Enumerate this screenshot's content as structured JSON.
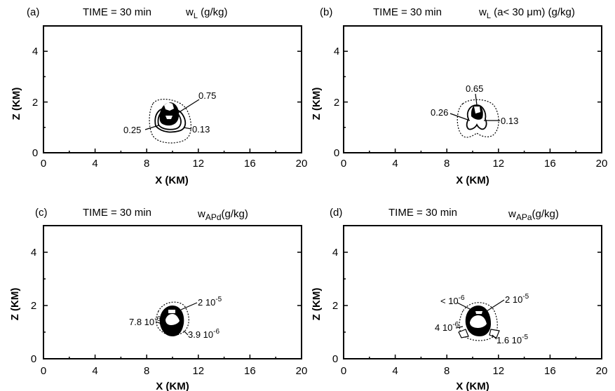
{
  "figure": {
    "panels": [
      {
        "id": "a",
        "tag": "(a)",
        "time_label": "TIME = 30 min",
        "variable_label": "w",
        "variable_sub": "L",
        "variable_suffix": " (g/kg)",
        "xlabel": "X  (KM)",
        "ylabel": "Z  (KM)",
        "xticks": [
          "0",
          "4",
          "8",
          "12",
          "16",
          "20"
        ],
        "yticks": [
          "0",
          "2",
          "4"
        ],
        "annotations": [
          "0.75",
          "0.25",
          "0.13"
        ]
      },
      {
        "id": "b",
        "tag": "(b)",
        "time_label": "TIME = 30 min",
        "variable_label": "w",
        "variable_sub": "L",
        "variable_suffix": "  (a< 30 μm) (g/kg)",
        "xlabel": "X  (KM)",
        "ylabel": "Z  (KM)",
        "xticks": [
          "0",
          "4",
          "8",
          "12",
          "16",
          "20"
        ],
        "yticks": [
          "0",
          "2",
          "4"
        ],
        "annotations": [
          "0.65",
          "0.26",
          "0.13"
        ]
      },
      {
        "id": "c",
        "tag": "(c)",
        "time_label": "TIME = 30 min",
        "variable_label": "w",
        "variable_sub": "APd",
        "variable_suffix": "(g/kg)",
        "xlabel": "X  (KM)",
        "ylabel": "Z  (KM)",
        "xticks": [
          "0",
          "4",
          "8",
          "12",
          "16",
          "20"
        ],
        "yticks": [
          "0",
          "2",
          "4"
        ],
        "annotations": [
          "2 10",
          "7.8 10",
          "3.9 10"
        ],
        "annotation_exps": [
          "-5",
          "-6",
          "-6"
        ]
      },
      {
        "id": "d",
        "tag": "(d)",
        "time_label": "TIME = 30 min",
        "variable_label": "w",
        "variable_sub": "APa",
        "variable_suffix": "(g/kg)",
        "xlabel": "X (KM)",
        "ylabel": "Z (KM)",
        "xticks": [
          "0",
          "4",
          "8",
          "12",
          "16",
          "20"
        ],
        "yticks": [
          "0",
          "2",
          "4"
        ],
        "annotations": [
          "< 10",
          "2 10",
          "4 10",
          "1.6 10"
        ],
        "annotation_exps": [
          "-6",
          "-5",
          "-6",
          "-5"
        ]
      }
    ]
  }
}
